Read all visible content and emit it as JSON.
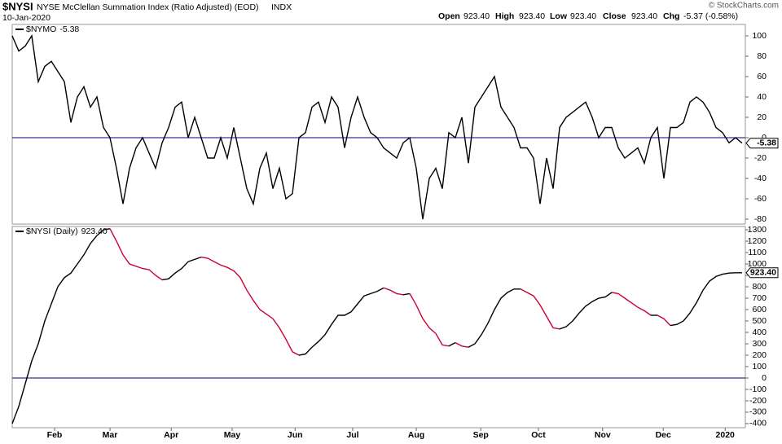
{
  "header": {
    "symbol": "$NYSI",
    "name": "NYSE McClellan Summation Index (Ratio Adjusted) (EOD)",
    "exchange": "INDX",
    "date": "10-Jan-2020",
    "open_label": "Open",
    "open": "923.40",
    "high_label": "High",
    "high": "923.40",
    "low_label": "Low",
    "low": "923.40",
    "close_label": "Close",
    "close": "923.40",
    "chg_label": "Chg",
    "chg": "-5.37 (-0.58%)",
    "credit": "© StockCharts.com"
  },
  "chart_data": [
    {
      "type": "line",
      "series": [
        {
          "name": "$NYMO",
          "color": "#000000",
          "values": [
            100,
            85,
            90,
            100,
            55,
            70,
            75,
            65,
            55,
            15,
            40,
            50,
            30,
            40,
            10,
            0,
            -30,
            -65,
            -30,
            -10,
            0,
            -15,
            -30,
            -5,
            10,
            30,
            35,
            0,
            20,
            0,
            -20,
            -20,
            0,
            -20,
            10,
            -20,
            -50,
            -65,
            -30,
            -15,
            -50,
            -30,
            -60,
            -55,
            0,
            5,
            30,
            35,
            15,
            40,
            30,
            -10,
            20,
            40,
            20,
            5,
            0,
            -10,
            -15,
            -20,
            -5,
            0,
            -30,
            -80,
            -40,
            -30,
            -50,
            5,
            0,
            20,
            -25,
            30,
            40,
            50,
            60,
            30,
            20,
            10,
            -10,
            -10,
            -20,
            -65,
            -20,
            -50,
            10,
            20,
            25,
            30,
            35,
            20,
            0,
            10,
            10,
            -10,
            -20,
            -15,
            -10,
            -25,
            0,
            10,
            -40,
            10,
            10,
            15,
            35,
            40,
            35,
            25,
            10,
            5,
            -5,
            0,
            -5.38
          ]
        }
      ],
      "xlim": [
        0,
        112
      ],
      "ylim": [
        -84.8,
        111.2
      ],
      "yticks": [
        100,
        80,
        60,
        40,
        20,
        0,
        -20,
        -40,
        -60,
        -80
      ],
      "zero_line_color": "#000080"
    },
    {
      "type": "line",
      "series": [
        {
          "name": "$NYSI (Daily)",
          "up_color": "#000000",
          "down_color": "#cc0033",
          "values": [
            -400,
            -250,
            -50,
            150,
            300,
            500,
            650,
            800,
            880,
            920,
            1000,
            1080,
            1180,
            1250,
            1300,
            1310,
            1200,
            1080,
            1000,
            980,
            960,
            950,
            900,
            860,
            870,
            920,
            960,
            1020,
            1040,
            1060,
            1050,
            1020,
            990,
            970,
            940,
            880,
            770,
            680,
            600,
            560,
            520,
            440,
            340,
            230,
            200,
            210,
            270,
            320,
            380,
            470,
            550,
            550,
            580,
            650,
            720,
            740,
            760,
            790,
            770,
            740,
            730,
            740,
            640,
            520,
            440,
            390,
            290,
            280,
            310,
            280,
            270,
            300,
            380,
            480,
            600,
            700,
            750,
            780,
            780,
            750,
            720,
            640,
            540,
            440,
            430,
            450,
            500,
            570,
            630,
            670,
            700,
            710,
            750,
            740,
            700,
            660,
            620,
            590,
            550,
            550,
            520,
            460,
            470,
            500,
            570,
            660,
            770,
            850,
            890,
            910,
            920,
            923,
            923.4
          ],
          "value_labels": [
            null,
            null,
            null,
            null,
            null,
            null,
            null,
            null,
            null,
            null,
            null,
            null,
            null,
            null,
            null,
            null,
            null,
            null,
            null,
            null,
            null,
            null,
            null,
            null,
            null,
            null,
            null,
            null,
            null,
            null,
            null,
            null,
            null,
            null,
            null,
            null,
            null,
            null,
            null,
            null,
            null,
            null,
            null,
            null,
            null,
            null,
            null,
            null,
            null,
            null,
            null,
            null,
            null,
            null,
            null,
            null,
            null,
            null,
            null,
            null,
            null,
            null,
            null,
            null,
            null,
            null,
            null,
            null,
            null,
            null,
            null,
            null,
            null,
            null,
            null,
            null,
            null,
            null,
            null,
            null,
            null,
            null,
            null,
            null,
            null,
            null,
            null,
            null,
            null,
            null,
            null,
            null,
            null,
            null,
            null,
            null,
            null,
            null,
            null,
            null,
            null,
            null,
            null,
            null,
            null,
            null,
            null,
            null,
            null,
            null,
            null,
            null,
            "923.40"
          ]
        }
      ],
      "xlim": [
        0,
        112
      ],
      "ylim": [
        -436,
        1329
      ],
      "yticks": [
        1300,
        1200,
        1100,
        1000,
        900,
        800,
        700,
        600,
        500,
        400,
        300,
        200,
        100,
        0,
        -100,
        -200,
        -300,
        -400
      ],
      "zero_line_color": "#000080",
      "xticks": [
        {
          "value": 6.5,
          "label": "Feb"
        },
        {
          "value": 15,
          "label": "Mar"
        },
        {
          "value": 24.4,
          "label": "Apr"
        },
        {
          "value": 33.75,
          "label": "May"
        },
        {
          "value": 43.4,
          "label": "Jun"
        },
        {
          "value": 52.25,
          "label": "Jul"
        },
        {
          "value": 62,
          "label": "Aug"
        },
        {
          "value": 71.9,
          "label": "Sep"
        },
        {
          "value": 80.75,
          "label": "Oct"
        },
        {
          "value": 90.6,
          "label": "Nov"
        },
        {
          "value": 99.9,
          "label": "Dec"
        },
        {
          "value": 109.4,
          "label": "2020"
        }
      ]
    }
  ]
}
